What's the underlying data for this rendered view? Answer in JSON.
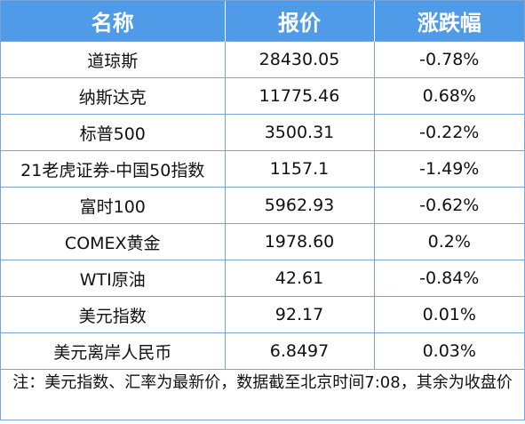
{
  "header": {
    "col_name": "名称",
    "col_price": "报价",
    "col_change": "涨跌幅"
  },
  "rows": [
    {
      "name": "道琼斯",
      "price": "28430.05",
      "change": "-0.78%"
    },
    {
      "name": "纳斯达克",
      "price": "11775.46",
      "change": "0.68%"
    },
    {
      "name": "标普500",
      "price": "3500.31",
      "change": "-0.22%"
    },
    {
      "name": "21老虎证券-中国50指数",
      "price": "1157.1",
      "change": "-1.49%"
    },
    {
      "name": "富时100",
      "price": "5962.93",
      "change": "-0.62%"
    },
    {
      "name": "COMEX黄金",
      "price": "1978.60",
      "change": "0.2%"
    },
    {
      "name": "WTI原油",
      "price": "42.61",
      "change": "-0.84%"
    },
    {
      "name": "美元指数",
      "price": "92.17",
      "change": "0.01%"
    },
    {
      "name": "美元离岸人民币",
      "price": "6.8497",
      "change": "0.03%"
    }
  ],
  "note": "注：美元指数、汇率为最新价，数据截至北京时间7:08，其余为收盘价",
  "colors": {
    "header_bg": "#4f9be8",
    "header_text": "#ffffff",
    "border": "#7aa3d6"
  }
}
